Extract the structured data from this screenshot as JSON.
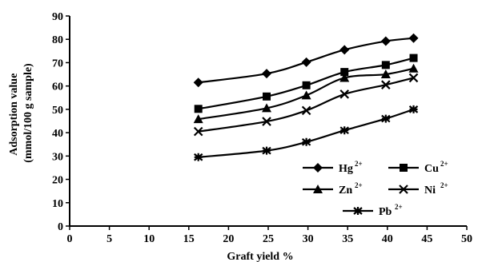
{
  "chart_data": {
    "type": "line",
    "xlabel": "Graft yield %",
    "ylabel_line1": "Adsorption value",
    "ylabel_line2": "(mmol/100 g sample)",
    "xlim": [
      0,
      50
    ],
    "ylim": [
      0,
      90
    ],
    "x_ticks": [
      0,
      5,
      10,
      15,
      20,
      25,
      30,
      35,
      40,
      45,
      50
    ],
    "y_ticks": [
      0,
      10,
      20,
      30,
      40,
      50,
      60,
      70,
      80,
      90
    ],
    "grid": false,
    "legend_position": "bottom-right",
    "x": [
      16.2,
      24.8,
      29.8,
      34.6,
      39.8,
      43.3
    ],
    "series": [
      {
        "name": "Hg",
        "charge": "2+",
        "marker": "diamond",
        "values": [
          61.5,
          65.3,
          70.2,
          75.5,
          79.2,
          80.5
        ]
      },
      {
        "name": "Cu",
        "charge": "2+",
        "marker": "square",
        "values": [
          50.2,
          55.5,
          60.3,
          66.0,
          69.0,
          72.0
        ]
      },
      {
        "name": "Zn",
        "charge": "2+",
        "marker": "triangle",
        "values": [
          45.8,
          50.5,
          56.0,
          63.5,
          65.0,
          67.5
        ]
      },
      {
        "name": "Ni",
        "charge": "2+",
        "marker": "x",
        "values": [
          40.5,
          44.8,
          49.5,
          56.5,
          60.5,
          63.5
        ]
      },
      {
        "name": "Pb",
        "charge": "2+",
        "marker": "star",
        "values": [
          29.5,
          32.3,
          36.0,
          41.0,
          46.0,
          50.0
        ]
      }
    ]
  }
}
